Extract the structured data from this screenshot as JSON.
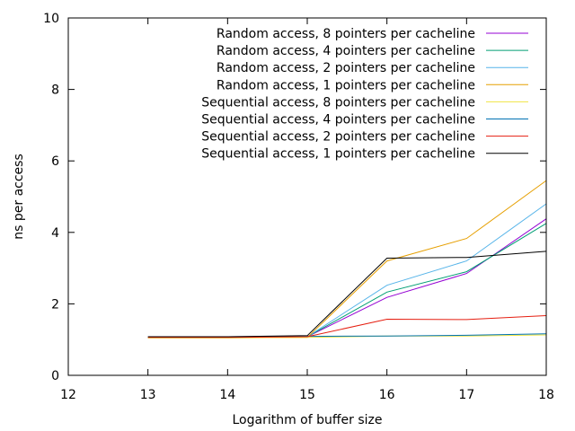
{
  "chart_data": {
    "type": "line",
    "title": "",
    "xlabel": "Logarithm of buffer size",
    "ylabel": "ns per access",
    "xlim": [
      12,
      18
    ],
    "ylim": [
      0,
      10
    ],
    "xticks": [
      12,
      13,
      14,
      15,
      16,
      17,
      18
    ],
    "yticks": [
      0,
      2,
      4,
      6,
      8,
      10
    ],
    "grid": false,
    "legend_position": "top-right",
    "x": [
      13,
      14,
      15,
      16,
      17,
      18
    ],
    "series": [
      {
        "name": "Random access, 8 pointers per cacheline",
        "color": "#9400d3",
        "values": [
          1.06,
          1.06,
          1.08,
          2.18,
          2.85,
          4.38
        ]
      },
      {
        "name": "Random access, 4 pointers per cacheline",
        "color": "#009e73",
        "values": [
          1.06,
          1.06,
          1.08,
          2.33,
          2.9,
          4.25
        ]
      },
      {
        "name": "Random access, 2 pointers per cacheline",
        "color": "#56b4e9",
        "values": [
          1.06,
          1.06,
          1.08,
          2.52,
          3.2,
          4.8
        ]
      },
      {
        "name": "Random access, 1 pointers per cacheline",
        "color": "#e69f00",
        "values": [
          1.05,
          1.05,
          1.06,
          3.2,
          3.83,
          5.45
        ]
      },
      {
        "name": "Sequential access, 8 pointers per cacheline",
        "color": "#f0e442",
        "values": [
          1.05,
          1.05,
          1.06,
          1.1,
          1.1,
          1.13
        ]
      },
      {
        "name": "Sequential access, 4 pointers per cacheline",
        "color": "#0072b2",
        "values": [
          1.08,
          1.08,
          1.09,
          1.1,
          1.12,
          1.16
        ]
      },
      {
        "name": "Sequential access, 2 pointers per cacheline",
        "color": "#e51e10",
        "values": [
          1.06,
          1.06,
          1.08,
          1.57,
          1.56,
          1.67
        ]
      },
      {
        "name": "Sequential access, 1 pointers per cacheline",
        "color": "#000000",
        "values": [
          1.08,
          1.08,
          1.11,
          3.28,
          3.3,
          3.47
        ]
      }
    ]
  }
}
